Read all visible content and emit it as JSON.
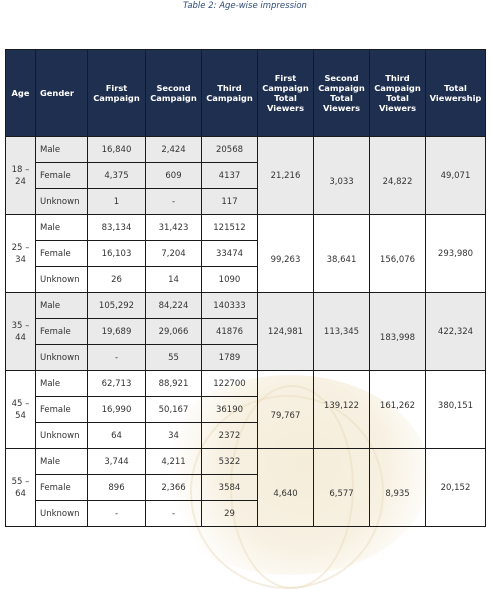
{
  "caption": "Table 2: Age-wise impression",
  "headers": {
    "age": "Age",
    "gender": "Gender",
    "first": "First Campaign",
    "second": "Second Campaign",
    "third": "Third Campaign",
    "first_total": "First Campaign Total Viewers",
    "second_total": "Second Campaign Total Viewers",
    "third_total": "Third Campaign Total Viewers",
    "total": "Total Viewership"
  },
  "groups": [
    {
      "age": "18 – 24",
      "rows": [
        {
          "gender": "Male",
          "first": "16,840",
          "second": "2,424",
          "third": "20568"
        },
        {
          "gender": "Female",
          "first": "4,375",
          "second": "609",
          "third": "4137"
        },
        {
          "gender": "Unknown",
          "first": "1",
          "second": "-",
          "third": "117"
        }
      ],
      "first_total": "21,216",
      "second_total": "3,033",
      "third_total": "24,822",
      "total": "49,071"
    },
    {
      "age": "25 – 34",
      "rows": [
        {
          "gender": "Male",
          "first": "83,134",
          "second": "31,423",
          "third": "121512"
        },
        {
          "gender": "Female",
          "first": "16,103",
          "second": "7,204",
          "third": "33474"
        },
        {
          "gender": "Unknown",
          "first": "26",
          "second": "14",
          "third": "1090"
        }
      ],
      "first_total": "99,263",
      "second_total": "38,641",
      "third_total": "156,076",
      "total": "293,980"
    },
    {
      "age": "35 – 44",
      "rows": [
        {
          "gender": "Male",
          "first": "105,292",
          "second": "84,224",
          "third": "140333"
        },
        {
          "gender": "Female",
          "first": "19,689",
          "second": "29,066",
          "third": "41876"
        },
        {
          "gender": "Unknown",
          "first": "-",
          "second": "55",
          "third": "1789"
        }
      ],
      "first_total": "124,981",
      "second_total": "113,345",
      "third_total": "183,998",
      "total": "422,324"
    },
    {
      "age": "45 – 54",
      "rows": [
        {
          "gender": "Male",
          "first": "62,713",
          "second": "88,921",
          "third": "122700"
        },
        {
          "gender": "Female",
          "first": "16,990",
          "second": "50,167",
          "third": "36190"
        },
        {
          "gender": "Unknown",
          "first": "64",
          "second": "34",
          "third": "2372"
        }
      ],
      "first_total": "79,767",
      "second_total": "139,122",
      "third_total": "161,262",
      "total": "380,151"
    },
    {
      "age": "55 – 64",
      "rows": [
        {
          "gender": "Male",
          "first": "3,744",
          "second": "4,211",
          "third": "5322"
        },
        {
          "gender": "Female",
          "first": "896",
          "second": "2,366",
          "third": "3584"
        },
        {
          "gender": "Unknown",
          "first": "-",
          "second": "-",
          "third": "29"
        }
      ],
      "first_total": "4,640",
      "second_total": "6,577",
      "third_total": "8,935",
      "total": "20,152"
    }
  ]
}
